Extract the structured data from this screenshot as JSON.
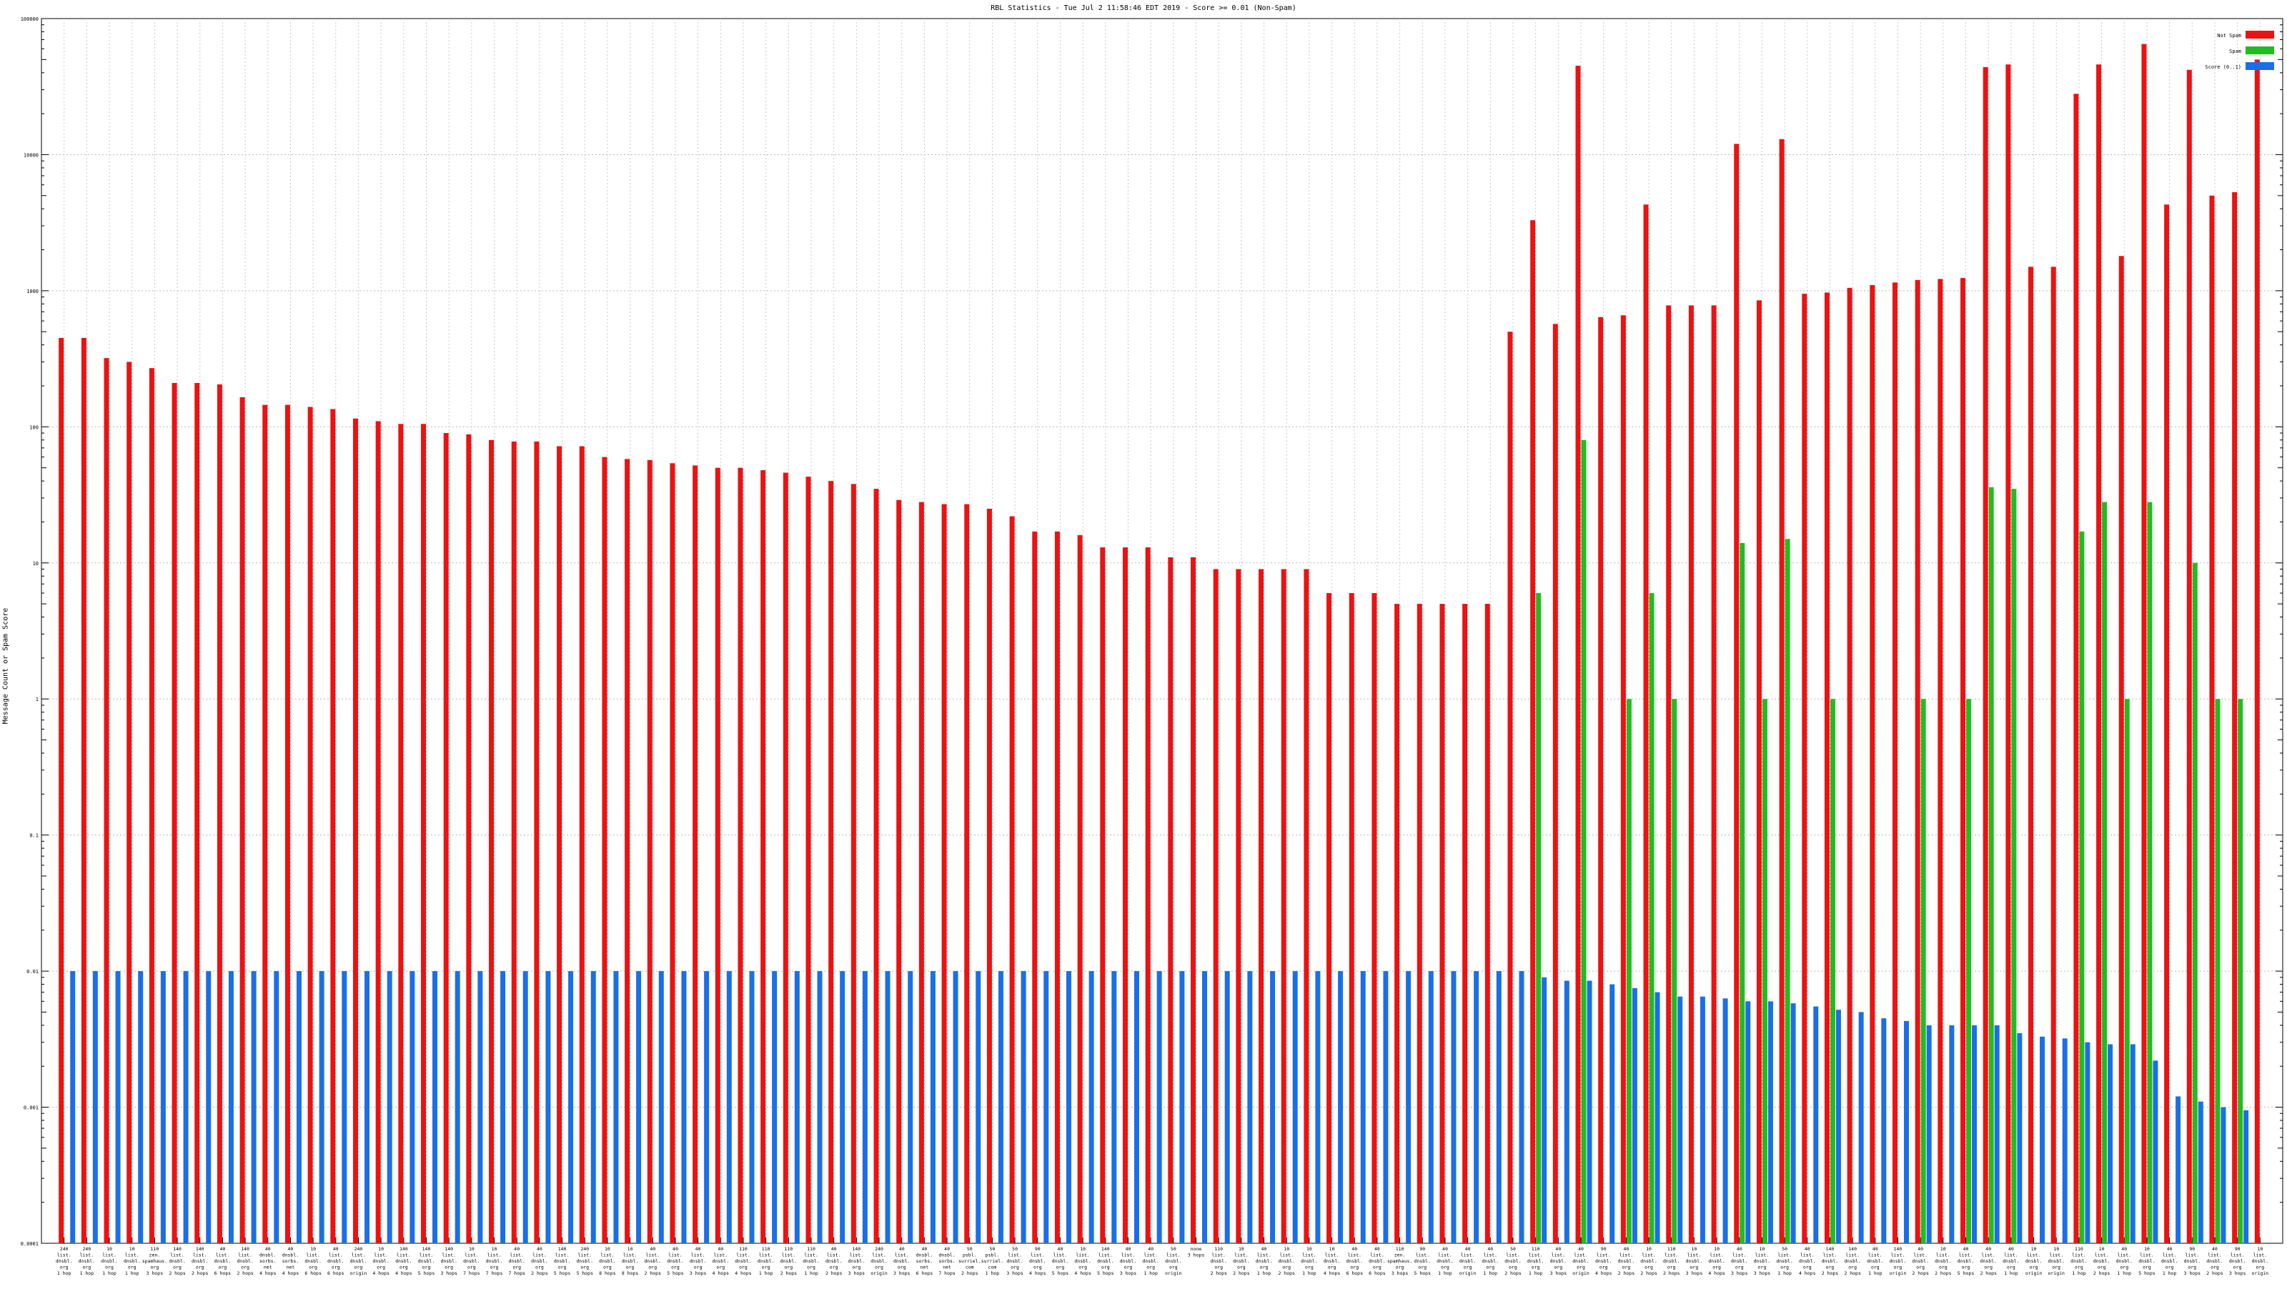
{
  "chart_data": {
    "type": "bar",
    "title": "RBL Statistics - Tue Jul  2 11:58:46 EDT 2019 - Score >= 0.01 (Non-Spam)",
    "ylabel": "Message Count or Spam Score",
    "xlabel": "",
    "y_scale": "log",
    "ylim": [
      0.0001,
      100000
    ],
    "y_tick_labels": [
      "0.0001",
      "0.001",
      "0.01",
      "0.1",
      "1",
      "10",
      "100",
      "1000",
      "10000",
      "100000"
    ],
    "grid": true,
    "legend_position": "top-right",
    "series": [
      {
        "name": "Not Spam",
        "color": "#ee1111",
        "values": [
          450,
          450,
          320,
          300,
          270,
          210,
          210,
          205,
          165,
          145,
          145,
          140,
          135,
          115,
          110,
          105,
          105,
          90,
          88,
          80,
          78,
          78,
          72,
          72,
          60,
          58,
          57,
          54,
          52,
          50,
          50,
          48,
          46,
          43,
          40,
          38,
          35,
          29,
          28,
          27,
          27,
          25,
          22,
          17,
          17,
          16,
          13,
          13,
          13,
          11,
          11,
          9,
          9,
          9,
          9,
          9,
          6,
          6,
          6,
          5,
          5,
          5,
          5,
          5,
          500,
          3300,
          570,
          45000,
          640,
          660,
          4300,
          780,
          780,
          780,
          12000,
          850,
          13000,
          950,
          970,
          1050,
          1100,
          1150,
          1200,
          1220,
          1240,
          44000,
          46000,
          1500,
          1500,
          28000,
          46000,
          1800,
          65000,
          4300,
          42000,
          5000,
          5300,
          50000
        ]
      },
      {
        "name": "Spam",
        "color": "#22bb22",
        "values": [
          null,
          null,
          null,
          null,
          null,
          null,
          null,
          null,
          null,
          null,
          null,
          null,
          null,
          null,
          null,
          null,
          null,
          null,
          null,
          null,
          null,
          null,
          null,
          null,
          null,
          null,
          null,
          null,
          null,
          null,
          null,
          null,
          null,
          null,
          null,
          null,
          null,
          null,
          null,
          null,
          null,
          null,
          null,
          null,
          null,
          null,
          null,
          null,
          null,
          null,
          null,
          null,
          null,
          null,
          null,
          null,
          null,
          null,
          null,
          null,
          null,
          null,
          null,
          null,
          null,
          6,
          null,
          80,
          null,
          1,
          6,
          1,
          null,
          null,
          14,
          1,
          15,
          null,
          1,
          null,
          null,
          null,
          1,
          null,
          1,
          36,
          35,
          null,
          null,
          17,
          28,
          1,
          28,
          null,
          10,
          1,
          1,
          null
        ]
      },
      {
        "name": "Score (0..1)",
        "color": "#1a6fe8",
        "values": [
          0.01,
          0.01,
          0.01,
          0.01,
          0.01,
          0.01,
          0.01,
          0.01,
          0.01,
          0.01,
          0.01,
          0.01,
          0.01,
          0.01,
          0.01,
          0.01,
          0.01,
          0.01,
          0.01,
          0.01,
          0.01,
          0.01,
          0.01,
          0.01,
          0.01,
          0.01,
          0.01,
          0.01,
          0.01,
          0.01,
          0.01,
          0.01,
          0.01,
          0.01,
          0.01,
          0.01,
          0.01,
          0.01,
          0.01,
          0.01,
          0.01,
          0.01,
          0.01,
          0.01,
          0.01,
          0.01,
          0.01,
          0.01,
          0.01,
          0.01,
          0.01,
          0.01,
          0.01,
          0.01,
          0.01,
          0.01,
          0.01,
          0.01,
          0.01,
          0.01,
          0.01,
          0.01,
          0.01,
          0.01,
          0.01,
          0.009,
          0.0085,
          0.0085,
          0.008,
          0.0075,
          0.007,
          0.0065,
          0.0065,
          0.0063,
          0.006,
          0.006,
          0.0058,
          0.0055,
          0.0052,
          0.005,
          0.0045,
          0.0043,
          0.004,
          0.004,
          0.004,
          0.004,
          0.0035,
          0.0033,
          0.0032,
          0.003,
          0.0029,
          0.0029,
          0.0022,
          0.0012,
          0.0011,
          0.001,
          0.00095,
          null
        ]
      }
    ],
    "categories": [
      [
        "240",
        "list.",
        "dnsbl.",
        "org",
        "1 hop"
      ],
      [
        "240",
        "list.",
        "dnsbl.",
        "org",
        "1 hop"
      ],
      [
        "10",
        "list.",
        "dnsbl.",
        "org",
        "1 hop"
      ],
      [
        "10",
        "list.",
        "dnsbl.",
        "org",
        "1 hop"
      ],
      [
        "110",
        "zen.",
        "spamhaus.",
        "org",
        "3 hops"
      ],
      [
        "140",
        "list.",
        "dnsbl.",
        "org",
        "2 hops"
      ],
      [
        "140",
        "list.",
        "dnsbl.",
        "org",
        "2 hops"
      ],
      [
        "40",
        "list.",
        "dnsbl.",
        "org",
        "6 hops"
      ],
      [
        "140",
        "list.",
        "dnsbl.",
        "org",
        "2 hops"
      ],
      [
        "40",
        "dnsbl.",
        "sorbs.",
        "net",
        "4 hops"
      ],
      [
        "40",
        "dnsbl.",
        "sorbs.",
        "net",
        "4 hops"
      ],
      [
        "10",
        "list.",
        "dnsbl.",
        "org",
        "6 hops"
      ],
      [
        "40",
        "list.",
        "dnsbl.",
        "org",
        "6 hops"
      ],
      [
        "240",
        "list.",
        "dnsbl.",
        "org",
        "origin"
      ],
      [
        "10",
        "list.",
        "dnsbl.",
        "org",
        "4 hops"
      ],
      [
        "140",
        "list.",
        "dnsbl.",
        "org",
        "4 hops"
      ],
      [
        "140",
        "list.",
        "dnsbl.",
        "org",
        "5 hops"
      ],
      [
        "140",
        "list.",
        "dnsbl.",
        "org",
        "3 hops"
      ],
      [
        "10",
        "list.",
        "dnsbl.",
        "org",
        "7 hops"
      ],
      [
        "10",
        "list.",
        "dnsbl.",
        "org",
        "7 hops"
      ],
      [
        "40",
        "list.",
        "dnsbl.",
        "org",
        "7 hops"
      ],
      [
        "40",
        "list.",
        "dnsbl.",
        "org",
        "2 hops"
      ],
      [
        "140",
        "list.",
        "dnsbl.",
        "org",
        "5 hops"
      ],
      [
        "240",
        "list.",
        "dnsbl.",
        "org",
        "5 hops"
      ],
      [
        "10",
        "list.",
        "dnsbl.",
        "org",
        "8 hops"
      ],
      [
        "10",
        "list.",
        "dnsbl.",
        "org",
        "8 hops"
      ],
      [
        "40",
        "list.",
        "dnsbl.",
        "org",
        "2 hops"
      ],
      [
        "40",
        "list.",
        "dnsbl.",
        "org",
        "5 hops"
      ],
      [
        "40",
        "list.",
        "dnsbl.",
        "org",
        "3 hops"
      ],
      [
        "40",
        "list.",
        "dnsbl.",
        "org",
        "4 hops"
      ],
      [
        "110",
        "list.",
        "dnsbl.",
        "org",
        "4 hops"
      ],
      [
        "110",
        "list.",
        "dnsbl.",
        "org",
        "1 hop"
      ],
      [
        "110",
        "list.",
        "dnsbl.",
        "org",
        "2 hops"
      ],
      [
        "110",
        "list.",
        "dnsbl.",
        "org",
        "1 hop"
      ],
      [
        "40",
        "list.",
        "dnsbl.",
        "org",
        "2 hops"
      ],
      [
        "140",
        "list.",
        "dnsbl.",
        "org",
        "3 hops"
      ],
      [
        "240",
        "list.",
        "dnsbl.",
        "org",
        "origin"
      ],
      [
        "40",
        "list.",
        "dnsbl.",
        "org",
        "3 hops"
      ],
      [
        "40",
        "dnsbl.",
        "sorbs.",
        "net",
        "6 hops"
      ],
      [
        "40",
        "dnsbl.",
        "sorbs.",
        "net",
        "7 hops"
      ],
      [
        "50",
        "psbl.",
        "surriel.",
        "com",
        "2 hops"
      ],
      [
        "50",
        "psbl.",
        "surriel.",
        "com",
        "1 hop"
      ],
      [
        "50",
        "list.",
        "dnsbl.",
        "org",
        "3 hops"
      ],
      [
        "90",
        "list.",
        "dnsbl.",
        "org",
        "4 hops"
      ],
      [
        "40",
        "list.",
        "dnsbl.",
        "org",
        "5 hops"
      ],
      [
        "10",
        "list.",
        "dnsbl.",
        "org",
        "4 hops"
      ],
      [
        "140",
        "list.",
        "dnsbl.",
        "org",
        "5 hops"
      ],
      [
        "40",
        "list.",
        "dnsbl.",
        "org",
        "3 hops"
      ],
      [
        "40",
        "list.",
        "dnsbl.",
        "org",
        "1 hop"
      ],
      [
        "50",
        "list.",
        "dnsbl.",
        "org",
        "origin"
      ],
      [
        "none",
        "3 hops",
        "",
        "",
        ""
      ],
      [
        "110",
        "list.",
        "dnsbl.",
        "org",
        "2 hops"
      ],
      [
        "10",
        "list.",
        "dnsbl.",
        "org",
        "2 hops"
      ],
      [
        "40",
        "list.",
        "dnsbl.",
        "org",
        "1 hop"
      ],
      [
        "10",
        "list.",
        "dnsbl.",
        "org",
        "2 hops"
      ],
      [
        "10",
        "list.",
        "dnsbl.",
        "org",
        "1 hop"
      ],
      [
        "10",
        "list.",
        "dnsbl.",
        "org",
        "4 hops"
      ],
      [
        "40",
        "list.",
        "dnsbl.",
        "org",
        "6 hops"
      ],
      [
        "40",
        "list.",
        "dnsbl.",
        "org",
        "6 hops"
      ],
      [
        "110",
        "zen.",
        "spamhaus.",
        "org",
        "3 hops"
      ],
      [
        "90",
        "list.",
        "dnsbl.",
        "org",
        "5 hops"
      ],
      [
        "40",
        "list.",
        "dnsbl.",
        "org",
        "1 hop"
      ],
      [
        "40",
        "list.",
        "dnsbl.",
        "org",
        "origin"
      ],
      [
        "40",
        "list.",
        "dnsbl.",
        "org",
        "1 hop"
      ],
      [
        "50",
        "list.",
        "dnsbl.",
        "org",
        "2 hops"
      ],
      [
        "110",
        "list.",
        "dnsbl.",
        "org",
        "1 hop"
      ],
      [
        "40",
        "list.",
        "dnsbl.",
        "org",
        "3 hops"
      ],
      [
        "40",
        "list.",
        "dnsbl.",
        "org",
        "origin"
      ],
      [
        "90",
        "list.",
        "dnsbl.",
        "org",
        "4 hops"
      ],
      [
        "40",
        "list.",
        "dnsbl.",
        "org",
        "2 hops"
      ],
      [
        "10",
        "list.",
        "dnsbl.",
        "org",
        "2 hops"
      ],
      [
        "110",
        "list.",
        "dnsbl.",
        "org",
        "2 hops"
      ],
      [
        "10",
        "list.",
        "dnsbl.",
        "org",
        "3 hops"
      ],
      [
        "10",
        "list.",
        "dnsbl.",
        "org",
        "4 hops"
      ],
      [
        "40",
        "list.",
        "dnsbl.",
        "org",
        "3 hops"
      ],
      [
        "10",
        "list.",
        "dnsbl.",
        "org",
        "3 hops"
      ],
      [
        "50",
        "list.",
        "dnsbl.",
        "org",
        "1 hop"
      ],
      [
        "40",
        "list.",
        "dnsbl.",
        "org",
        "4 hops"
      ],
      [
        "140",
        "list.",
        "dnsbl.",
        "org",
        "2 hops"
      ],
      [
        "140",
        "list.",
        "dnsbl.",
        "org",
        "2 hops"
      ],
      [
        "40",
        "list.",
        "dnsbl.",
        "org",
        "1 hop"
      ],
      [
        "140",
        "list.",
        "dnsbl.",
        "org",
        "origin"
      ],
      [
        "40",
        "list.",
        "dnsbl.",
        "org",
        "2 hops"
      ],
      [
        "10",
        "list.",
        "dnsbl.",
        "org",
        "2 hops"
      ],
      [
        "40",
        "list.",
        "dnsbl.",
        "org",
        "5 hops"
      ],
      [
        "40",
        "list.",
        "dnsbl.",
        "org",
        "2 hops"
      ],
      [
        "40",
        "list.",
        "dnsbl.",
        "org",
        "1 hop"
      ],
      [
        "10",
        "list.",
        "dnsbl.",
        "org",
        "origin"
      ],
      [
        "10",
        "list.",
        "dnsbl.",
        "org",
        "origin"
      ],
      [
        "110",
        "list.",
        "dnsbl.",
        "org",
        "1 hop"
      ],
      [
        "10",
        "list.",
        "dnsbl.",
        "org",
        "2 hops"
      ],
      [
        "40",
        "list.",
        "dnsbl.",
        "org",
        "1 hop"
      ],
      [
        "10",
        "list.",
        "dnsbl.",
        "org",
        "5 hops"
      ],
      [
        "40",
        "list.",
        "dnsbl.",
        "org",
        "1 hop"
      ],
      [
        "90",
        "list.",
        "dnsbl.",
        "org",
        "3 hops"
      ],
      [
        "40",
        "list.",
        "dnsbl.",
        "org",
        "2 hops"
      ],
      [
        "90",
        "list.",
        "dnsbl.",
        "org",
        "3 hops"
      ],
      [
        "10",
        "list.",
        "dnsbl.",
        "org",
        "origin"
      ]
    ]
  }
}
